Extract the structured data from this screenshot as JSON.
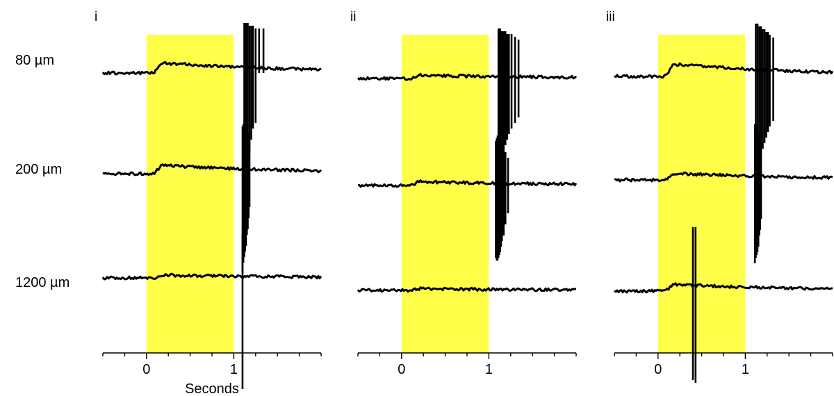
{
  "colors": {
    "stimulus": "#ffff4a",
    "trace": "#000000",
    "background": "#ffffff"
  },
  "row_labels": [
    "80 µm",
    "200 µm",
    "1200 µm"
  ],
  "chart_data": [
    {
      "type": "line",
      "panel_label": "i",
      "xlabel": "Seconds",
      "xlim": [
        -0.5,
        2.0
      ],
      "x_ticks": [
        0,
        1
      ],
      "x_minor_ticks": [
        -0.5,
        -0.25,
        0.25,
        0.5,
        0.75,
        1.25,
        1.5,
        1.75,
        2.0
      ],
      "stimulus": {
        "start": 0,
        "end": 1
      },
      "series": [
        {
          "row": "80 µm",
          "baseline": 0,
          "bump": 0.18,
          "bump_start": 0.08,
          "spikes": [
            1.12,
            1.14,
            1.16,
            1.18,
            1.2,
            1.22,
            1.25,
            1.29,
            1.34
          ],
          "spike_up": [
            0.9,
            0.9,
            0.9,
            0.85,
            0.85,
            0.85,
            0.8,
            0.8,
            0.8
          ],
          "spike_down": [
            1.7,
            1.6,
            1.5,
            1.4,
            1.2,
            1.0,
            0.9,
            0.0,
            0.0
          ]
        },
        {
          "row": "200 µm",
          "baseline": 0,
          "bump": 0.15,
          "bump_start": 0.08,
          "spikes": [
            1.1,
            1.11,
            1.12,
            1.13,
            1.14,
            1.15,
            1.16,
            1.17,
            1.18
          ],
          "spike_up": [
            0.85,
            0.9,
            0.9,
            0.9,
            0.85,
            0.8,
            0.75,
            0.7,
            0.6
          ],
          "spike_down": [
            1.8,
            1.6,
            1.5,
            1.4,
            1.3,
            1.1,
            1.0,
            0.8,
            0.6
          ]
        },
        {
          "row": "1200 µm",
          "baseline": 0,
          "bump": 0.05,
          "bump_start": 0.1,
          "spikes": [
            1.1
          ],
          "spike_up": [
            0.8
          ],
          "spike_down": [
            2.0
          ]
        }
      ]
    },
    {
      "type": "line",
      "panel_label": "ii",
      "xlabel": "",
      "xlim": [
        -0.5,
        2.0
      ],
      "x_ticks": [
        0,
        1
      ],
      "x_minor_ticks": [
        -0.5,
        -0.25,
        0.25,
        0.5,
        0.75,
        1.25,
        1.5,
        1.75,
        2.0
      ],
      "stimulus": {
        "start": 0,
        "end": 1
      },
      "series": [
        {
          "row": "80 µm",
          "baseline": 0,
          "bump": 0.06,
          "bump_start": 0.1,
          "spikes": [
            1.11,
            1.13,
            1.15,
            1.17,
            1.19,
            1.21,
            1.23,
            1.26,
            1.3,
            1.34
          ],
          "spike_up": [
            0.9,
            0.9,
            0.85,
            0.85,
            0.85,
            0.8,
            0.8,
            0.8,
            0.75,
            0.7
          ],
          "spike_down": [
            1.55,
            1.5,
            1.4,
            1.3,
            1.2,
            1.1,
            1.0,
            0.9,
            0.8,
            0.7
          ]
        },
        {
          "row": "200 µm",
          "baseline": 0,
          "bump": 0.07,
          "bump_start": 0.1,
          "spikes": [
            1.08,
            1.09,
            1.1,
            1.11,
            1.12,
            1.13,
            1.14,
            1.15,
            1.17,
            1.19,
            1.22
          ],
          "spike_up": [
            0.8,
            0.85,
            0.9,
            0.9,
            0.9,
            0.85,
            0.8,
            0.75,
            0.7,
            0.6,
            0.5
          ],
          "spike_down": [
            1.3,
            1.35,
            1.35,
            1.3,
            1.25,
            1.2,
            1.1,
            1.0,
            0.9,
            0.7,
            0.5
          ]
        },
        {
          "row": "1200 µm",
          "baseline": 0,
          "bump": 0.03,
          "bump_start": 0.1,
          "spikes": [],
          "spike_up": [],
          "spike_down": []
        }
      ]
    },
    {
      "type": "line",
      "panel_label": "iii",
      "xlabel": "",
      "xlim": [
        -0.5,
        2.0
      ],
      "x_ticks": [
        0,
        1
      ],
      "x_minor_ticks": [
        -0.5,
        -0.25,
        0.25,
        0.5,
        0.75,
        1.25,
        1.5,
        1.75,
        2.0
      ],
      "stimulus": {
        "start": 0,
        "end": 1
      },
      "series": [
        {
          "row": "80 µm",
          "baseline": 0,
          "bump": 0.22,
          "bump_start": 0.08,
          "spikes": [
            1.12,
            1.14,
            1.16,
            1.18,
            1.2,
            1.22,
            1.24,
            1.26,
            1.28,
            1.32
          ],
          "spike_up": [
            0.95,
            0.95,
            0.9,
            0.9,
            0.85,
            0.85,
            0.8,
            0.8,
            0.75,
            0.7
          ],
          "spike_down": [
            1.75,
            1.6,
            1.5,
            1.4,
            1.3,
            1.2,
            1.1,
            1.0,
            0.9,
            0.8
          ]
        },
        {
          "row": "200 µm",
          "baseline": 0,
          "bump": 0.12,
          "bump_start": 0.08,
          "spikes": [
            1.11,
            1.12,
            1.13,
            1.14,
            1.15,
            1.16,
            1.17,
            1.18
          ],
          "spike_up": [
            1.0,
            1.0,
            0.95,
            0.9,
            0.85,
            0.8,
            0.75,
            0.7
          ],
          "spike_down": [
            1.5,
            1.4,
            1.35,
            1.3,
            1.2,
            1.0,
            0.9,
            0.7
          ]
        },
        {
          "row": "1200 µm",
          "baseline": 0,
          "bump": 0.12,
          "bump_start": 0.08,
          "spikes": [
            0.4,
            0.43
          ],
          "spike_up": [
            1.15,
            1.15
          ],
          "spike_down": [
            1.6,
            1.65
          ]
        }
      ]
    }
  ]
}
